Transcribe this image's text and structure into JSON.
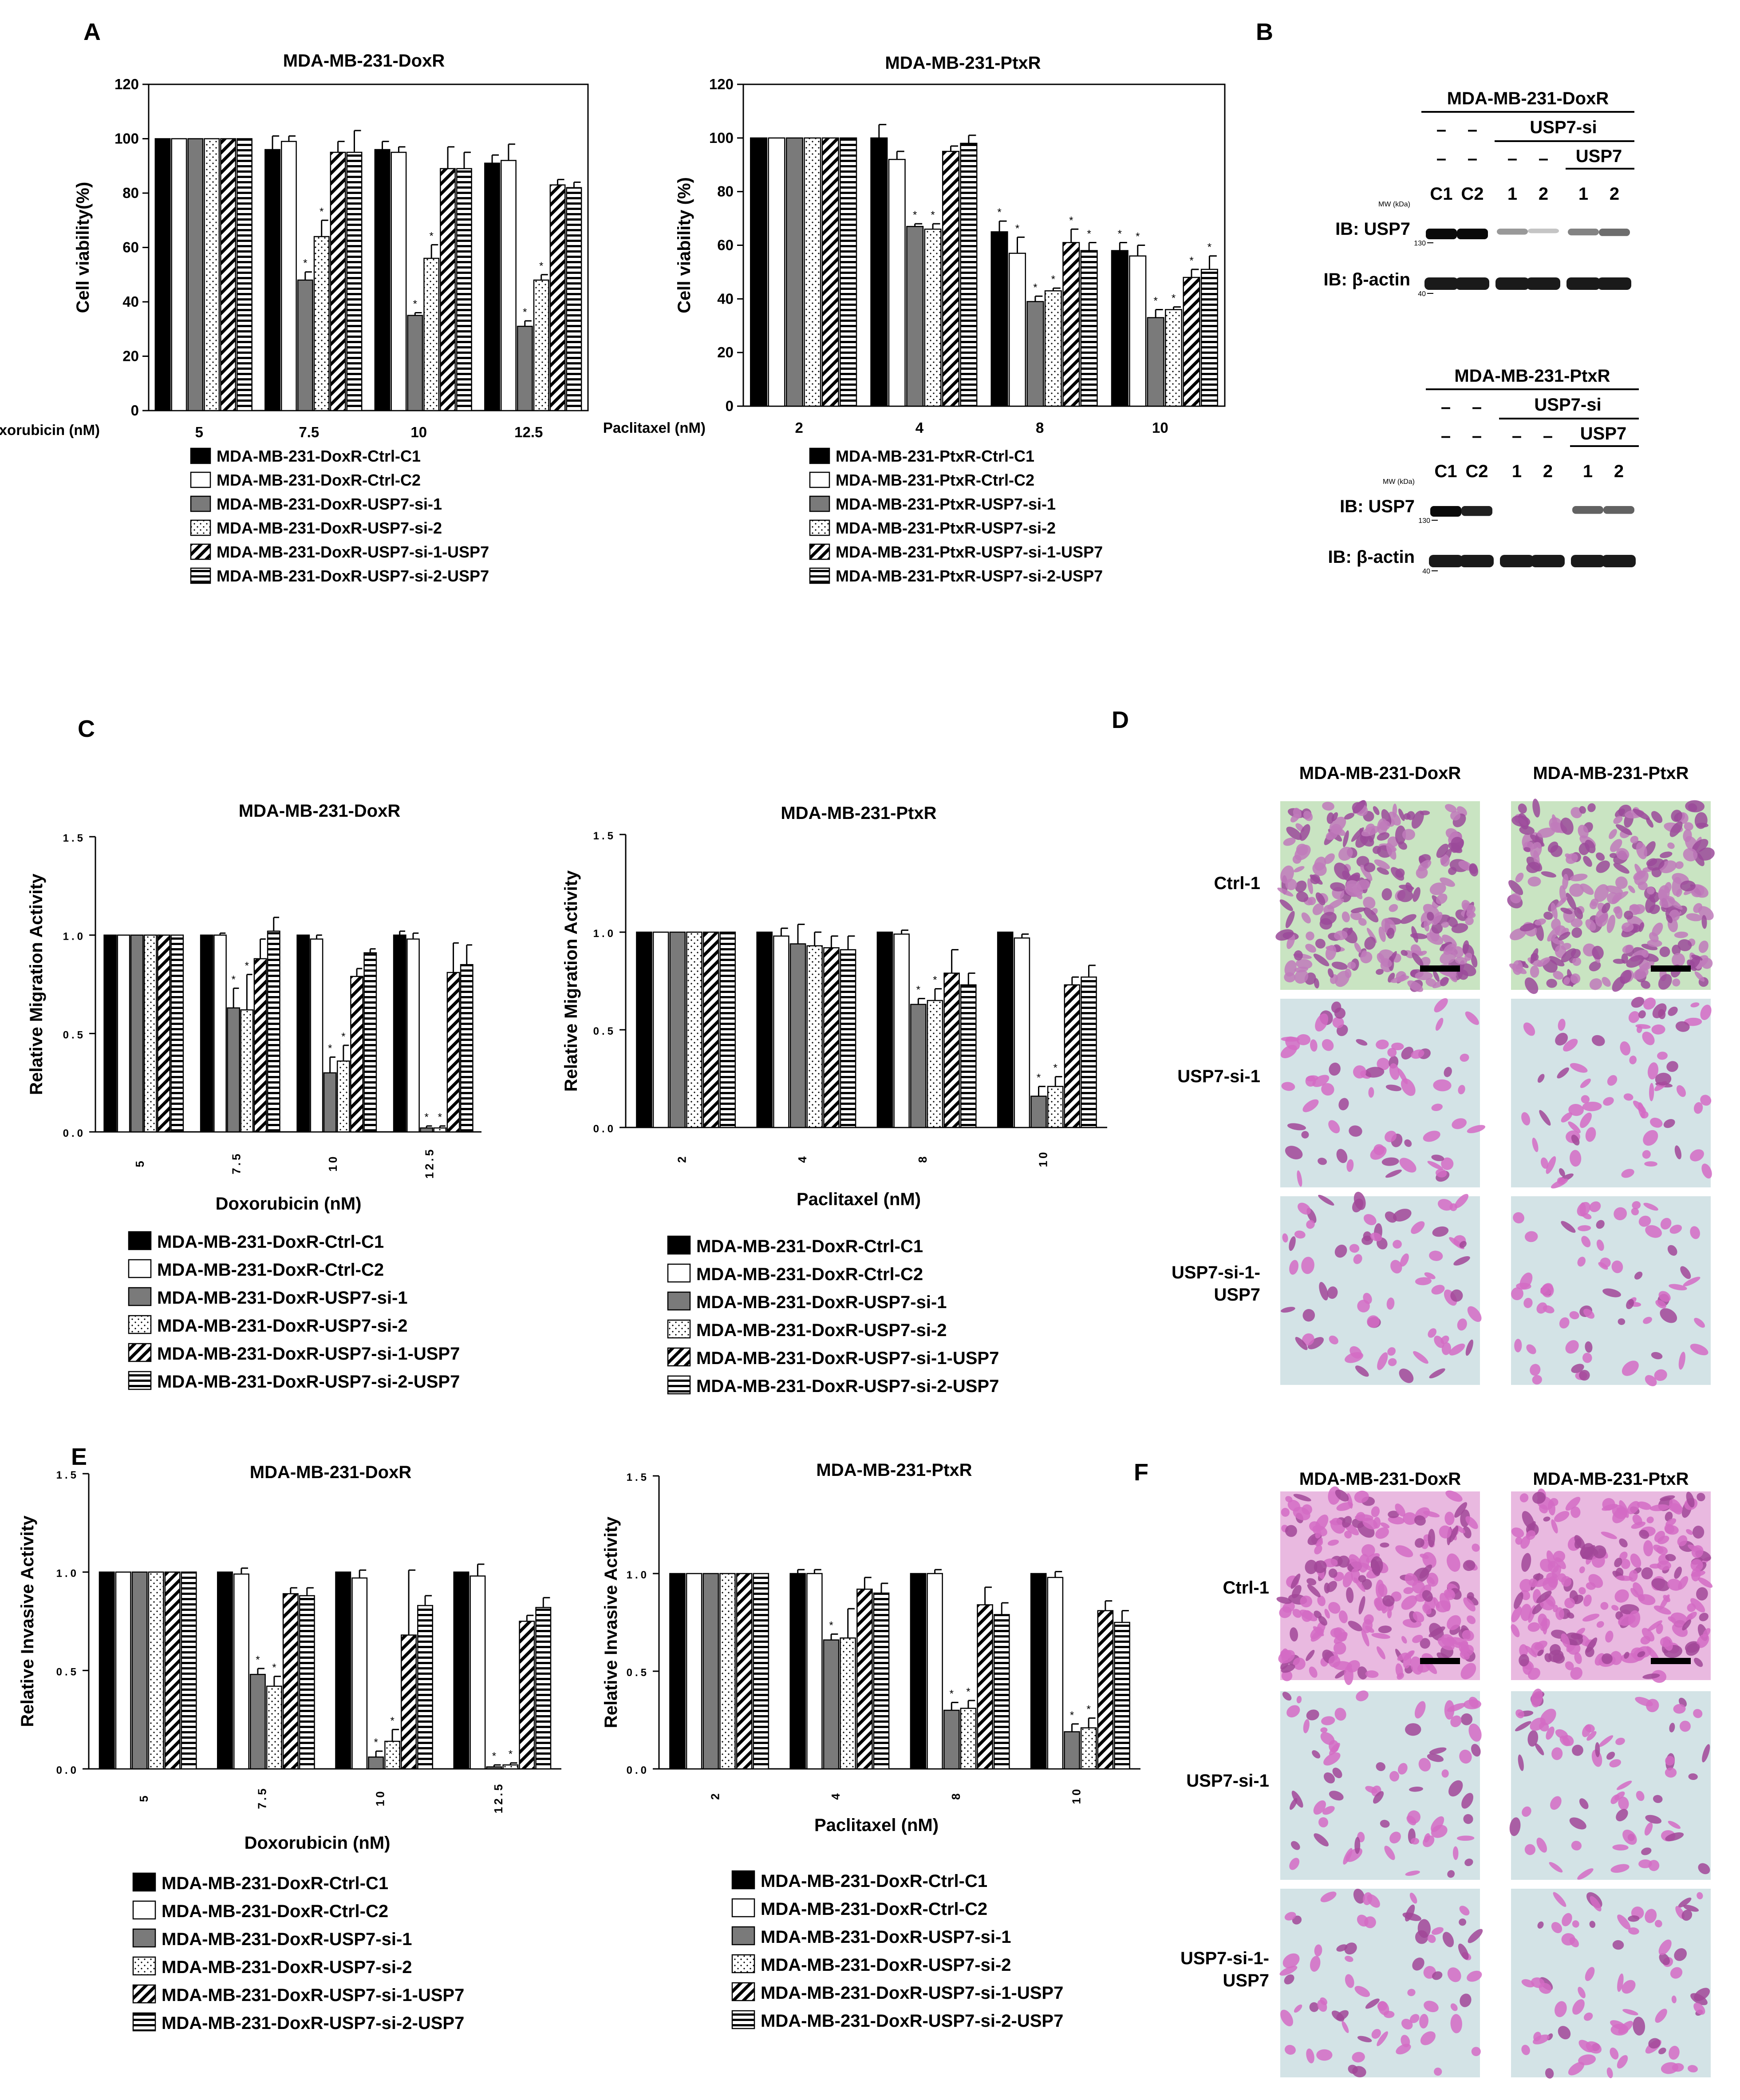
{
  "panels": {
    "A": "A",
    "B": "B",
    "C": "C",
    "D": "D",
    "E": "E",
    "F": "F"
  },
  "series_legends": {
    "doxA": [
      "MDA-MB-231-DoxR-Ctrl-C1",
      "MDA-MB-231-DoxR-Ctrl-C2",
      "MDA-MB-231-DoxR-USP7-si-1",
      "MDA-MB-231-DoxR-USP7-si-2",
      "MDA-MB-231-DoxR-USP7-si-1-USP7",
      "MDA-MB-231-DoxR-USP7-si-2-USP7"
    ],
    "ptxA": [
      "MDA-MB-231-PtxR-Ctrl-C1",
      "MDA-MB-231-PtxR-Ctrl-C2",
      "MDA-MB-231-PtxR-USP7-si-1",
      "MDA-MB-231-PtxR-USP7-si-2",
      "MDA-MB-231-PtxR-USP7-si-1-USP7",
      "MDA-MB-231-PtxR-USP7-si-2-USP7"
    ]
  },
  "colors": {
    "black": "#000000",
    "white": "#ffffff",
    "gray": "#7a7a7a",
    "purple_stain": "#c24fb4",
    "teal_background": "#a7d4d0"
  },
  "chart_data": [
    {
      "id": "A_dox",
      "type": "bar",
      "title": "MDA-MB-231-DoxR",
      "ylabel": "Cell viability(%)",
      "xlabel": "Doxorubicin (nM)",
      "ylim": [
        0,
        120
      ],
      "yticks": [
        "0",
        "20",
        "40",
        "60",
        "80",
        "100",
        "120"
      ],
      "categories": [
        "5",
        "7.5",
        "10",
        "12.5"
      ],
      "series": [
        {
          "name": "MDA-MB-231-DoxR-Ctrl-C1",
          "values": [
            100,
            96,
            96,
            91
          ],
          "err": [
            0,
            5,
            3,
            3
          ]
        },
        {
          "name": "MDA-MB-231-DoxR-Ctrl-C2",
          "values": [
            100,
            99,
            95,
            92
          ],
          "err": [
            0,
            2,
            2,
            6
          ]
        },
        {
          "name": "MDA-MB-231-DoxR-USP7-si-1",
          "values": [
            100,
            48,
            35,
            31
          ],
          "err": [
            0,
            3,
            1,
            2
          ],
          "sig": [
            false,
            true,
            true,
            true
          ]
        },
        {
          "name": "MDA-MB-231-DoxR-USP7-si-2",
          "values": [
            100,
            64,
            56,
            48
          ],
          "err": [
            0,
            6,
            5,
            2
          ],
          "sig": [
            false,
            true,
            true,
            true
          ]
        },
        {
          "name": "MDA-MB-231-DoxR-USP7-si-1-USP7",
          "values": [
            100,
            95,
            89,
            83
          ],
          "err": [
            0,
            4,
            8,
            2
          ]
        },
        {
          "name": "MDA-MB-231-DoxR-USP7-si-2-USP7",
          "values": [
            100,
            95,
            89,
            82
          ],
          "err": [
            0,
            8,
            6,
            2
          ]
        }
      ]
    },
    {
      "id": "A_ptx",
      "type": "bar",
      "title": "MDA-MB-231-PtxR",
      "ylabel": "Cell viability (%)",
      "xlabel": "Paclitaxel (nM)",
      "ylim": [
        0,
        120
      ],
      "yticks": [
        "0",
        "20",
        "40",
        "60",
        "80",
        "100",
        "120"
      ],
      "categories": [
        "2",
        "4",
        "8",
        "10"
      ],
      "series": [
        {
          "name": "MDA-MB-231-PtxR-Ctrl-C1",
          "values": [
            100,
            100,
            65,
            58
          ],
          "err": [
            0,
            5,
            4,
            3
          ],
          "sig": [
            false,
            false,
            true,
            true
          ]
        },
        {
          "name": "MDA-MB-231-PtxR-Ctrl-C2",
          "values": [
            100,
            92,
            57,
            56
          ],
          "err": [
            0,
            3,
            6,
            4
          ],
          "sig": [
            false,
            false,
            true,
            true
          ]
        },
        {
          "name": "MDA-MB-231-PtxR-USP7-si-1",
          "values": [
            100,
            67,
            39,
            33
          ],
          "err": [
            0,
            1,
            2,
            3
          ],
          "sig": [
            false,
            true,
            true,
            true
          ]
        },
        {
          "name": "MDA-MB-231-PtxR-USP7-si-2",
          "values": [
            100,
            66,
            43,
            36
          ],
          "err": [
            0,
            2,
            1,
            1
          ],
          "sig": [
            false,
            true,
            true,
            true
          ]
        },
        {
          "name": "MDA-MB-231-PtxR-USP7-si-1-USP7",
          "values": [
            100,
            95,
            61,
            48
          ],
          "err": [
            0,
            2,
            5,
            3
          ],
          "sig": [
            false,
            false,
            true,
            true
          ]
        },
        {
          "name": "MDA-MB-231-PtxR-USP7-si-2-USP7",
          "values": [
            100,
            98,
            58,
            51
          ],
          "err": [
            0,
            3,
            3,
            5
          ],
          "sig": [
            false,
            false,
            true,
            true
          ]
        }
      ]
    },
    {
      "id": "C_dox",
      "type": "bar",
      "title": "MDA-MB-231-DoxR",
      "ylabel": "Relative Migration Activity",
      "xlabel": "Doxorubicin (nM)",
      "ylim": [
        0,
        1.5
      ],
      "yticks": [
        "0.0",
        "0.5",
        "1.0",
        "1.5"
      ],
      "categories": [
        "5",
        "7.5",
        "10",
        "12.5"
      ],
      "series": [
        {
          "name": "MDA-MB-231-DoxR-Ctrl-C1",
          "values": [
            1.0,
            1.0,
            1.0,
            1.0
          ],
          "err": [
            0,
            0,
            0,
            0.02
          ]
        },
        {
          "name": "MDA-MB-231-DoxR-Ctrl-C2",
          "values": [
            1.0,
            1.0,
            0.98,
            0.98
          ],
          "err": [
            0,
            0.01,
            0.02,
            0.03
          ]
        },
        {
          "name": "MDA-MB-231-DoxR-USP7-si-1",
          "values": [
            1.0,
            0.63,
            0.3,
            0.02
          ],
          "err": [
            0,
            0.1,
            0.08,
            0.01
          ],
          "sig": [
            false,
            true,
            true,
            true
          ]
        },
        {
          "name": "MDA-MB-231-DoxR-USP7-si-2",
          "values": [
            1.0,
            0.62,
            0.36,
            0.02
          ],
          "err": [
            0,
            0.18,
            0.08,
            0.01
          ],
          "sig": [
            false,
            true,
            true,
            true
          ]
        },
        {
          "name": "MDA-MB-231-DoxR-USP7-si-1-USP7",
          "values": [
            1.0,
            0.88,
            0.79,
            0.81
          ],
          "err": [
            0,
            0.1,
            0.04,
            0.15
          ]
        },
        {
          "name": "MDA-MB-231-DoxR-USP7-si-2-USP7",
          "values": [
            1.0,
            1.02,
            0.91,
            0.85
          ],
          "err": [
            0,
            0.07,
            0.02,
            0.1
          ]
        }
      ]
    },
    {
      "id": "C_ptx",
      "type": "bar",
      "title": "MDA-MB-231-PtxR",
      "ylabel": "Relative Migration Activity",
      "xlabel": "Paclitaxel (nM)",
      "ylim": [
        0,
        1.5
      ],
      "yticks": [
        "0.0",
        "0.5",
        "1.0",
        "1.5"
      ],
      "categories": [
        "2",
        "4",
        "8",
        "10"
      ],
      "series": [
        {
          "name": "MDA-MB-231-DoxR-Ctrl-C1",
          "values": [
            1.0,
            1.0,
            1.0,
            1.0
          ],
          "err": [
            0,
            0,
            0,
            0
          ]
        },
        {
          "name": "MDA-MB-231-DoxR-Ctrl-C2",
          "values": [
            1.0,
            0.98,
            0.99,
            0.97
          ],
          "err": [
            0,
            0.04,
            0.02,
            0.02
          ]
        },
        {
          "name": "MDA-MB-231-DoxR-USP7-si-1",
          "values": [
            1.0,
            0.94,
            0.63,
            0.16
          ],
          "err": [
            0,
            0.1,
            0.03,
            0.05
          ],
          "sig": [
            false,
            false,
            true,
            true
          ]
        },
        {
          "name": "MDA-MB-231-DoxR-USP7-si-2",
          "values": [
            1.0,
            0.93,
            0.65,
            0.21
          ],
          "err": [
            0,
            0.07,
            0.06,
            0.05
          ],
          "sig": [
            false,
            false,
            true,
            true
          ]
        },
        {
          "name": "MDA-MB-231-DoxR-USP7-si-1-USP7",
          "values": [
            1.0,
            0.92,
            0.79,
            0.73
          ],
          "err": [
            0,
            0.06,
            0.12,
            0.04
          ]
        },
        {
          "name": "MDA-MB-231-DoxR-USP7-si-2-USP7",
          "values": [
            1.0,
            0.91,
            0.73,
            0.77
          ],
          "err": [
            0,
            0.07,
            0.06,
            0.06
          ]
        }
      ]
    },
    {
      "id": "E_dox",
      "type": "bar",
      "title": "MDA-MB-231-DoxR",
      "ylabel": "Relative Invasive Activity",
      "xlabel": "Doxorubicin (nM)",
      "ylim": [
        0,
        1.5
      ],
      "yticks": [
        "0.0",
        "0.5",
        "1.0",
        "1.5"
      ],
      "categories": [
        "5",
        "7.5",
        "10",
        "12.5"
      ],
      "series": [
        {
          "name": "MDA-MB-231-DoxR-Ctrl-C1",
          "values": [
            1.0,
            1.0,
            1.0,
            1.0
          ],
          "err": [
            0,
            0,
            0,
            0
          ]
        },
        {
          "name": "MDA-MB-231-DoxR-Ctrl-C2",
          "values": [
            1.0,
            0.99,
            0.97,
            0.98
          ],
          "err": [
            0,
            0.03,
            0.04,
            0.06
          ]
        },
        {
          "name": "MDA-MB-231-DoxR-USP7-si-1",
          "values": [
            1.0,
            0.48,
            0.06,
            0.01
          ],
          "err": [
            0,
            0.03,
            0.03,
            0.01
          ],
          "sig": [
            false,
            true,
            true,
            true
          ]
        },
        {
          "name": "MDA-MB-231-DoxR-USP7-si-2",
          "values": [
            1.0,
            0.42,
            0.14,
            0.02
          ],
          "err": [
            0,
            0.05,
            0.06,
            0.01
          ],
          "sig": [
            false,
            true,
            true,
            true
          ]
        },
        {
          "name": "MDA-MB-231-DoxR-USP7-si-1-USP7",
          "values": [
            1.0,
            0.89,
            0.68,
            0.75
          ],
          "err": [
            0,
            0.03,
            0.33,
            0.03
          ]
        },
        {
          "name": "MDA-MB-231-DoxR-USP7-si-2-USP7",
          "values": [
            1.0,
            0.88,
            0.83,
            0.82
          ],
          "err": [
            0,
            0.04,
            0.05,
            0.05
          ]
        }
      ]
    },
    {
      "id": "E_ptx",
      "type": "bar",
      "title": "MDA-MB-231-PtxR",
      "ylabel": "Relative Invasive Activity",
      "xlabel": "Paclitaxel (nM)",
      "ylim": [
        0,
        1.5
      ],
      "yticks": [
        "0.0",
        "0.5",
        "1.0",
        "1.5"
      ],
      "categories": [
        "2",
        "4",
        "8",
        "10"
      ],
      "series": [
        {
          "name": "MDA-MB-231-DoxR-Ctrl-C1",
          "values": [
            1.0,
            1.0,
            1.0,
            1.0
          ],
          "err": [
            0,
            0.02,
            0,
            0
          ]
        },
        {
          "name": "MDA-MB-231-DoxR-Ctrl-C2",
          "values": [
            1.0,
            1.0,
            1.0,
            0.98
          ],
          "err": [
            0,
            0.02,
            0.02,
            0.03
          ]
        },
        {
          "name": "MDA-MB-231-DoxR-USP7-si-1",
          "values": [
            1.0,
            0.66,
            0.3,
            0.19
          ],
          "err": [
            0,
            0.03,
            0.04,
            0.04
          ],
          "sig": [
            false,
            true,
            true,
            true
          ]
        },
        {
          "name": "MDA-MB-231-DoxR-USP7-si-2",
          "values": [
            1.0,
            0.67,
            0.31,
            0.21
          ],
          "err": [
            0,
            0.15,
            0.04,
            0.05
          ],
          "sig": [
            false,
            false,
            true,
            true
          ]
        },
        {
          "name": "MDA-MB-231-DoxR-USP7-si-1-USP7",
          "values": [
            1.0,
            0.92,
            0.84,
            0.81
          ],
          "err": [
            0,
            0.06,
            0.09,
            0.05
          ]
        },
        {
          "name": "MDA-MB-231-DoxR-USP7-si-2-USP7",
          "values": [
            1.0,
            0.9,
            0.79,
            0.75
          ],
          "err": [
            0,
            0.05,
            0.06,
            0.06
          ]
        }
      ]
    }
  ],
  "western_blots": [
    {
      "title": "MDA-MB-231-DoxR",
      "usp7si": "USP7-si",
      "usp7": "USP7",
      "dashes": [
        "–",
        "–",
        "–",
        "–"
      ],
      "lanes": [
        "C1",
        "C2",
        "1",
        "2",
        "1",
        "2"
      ],
      "mw_label": "MW (kDa)",
      "usp7_label": "IB: USP7",
      "actin_label": "IB: β-actin",
      "mw_130": "130",
      "mw_40": "40",
      "usp7_intensity": [
        1.0,
        1.0,
        0.35,
        0.15,
        0.45,
        0.55
      ],
      "actin_intensity": [
        1,
        1,
        1,
        1,
        1,
        1
      ]
    },
    {
      "title": "MDA-MB-231-PtxR",
      "usp7si": "USP7-si",
      "usp7": "USP7",
      "dashes": [
        "–",
        "–",
        "–",
        "–"
      ],
      "lanes": [
        "C1",
        "C2",
        "1",
        "2",
        "1",
        "2"
      ],
      "mw_label": "MW (kDa)",
      "usp7_label": "IB: USP7",
      "actin_label": "IB: β-actin",
      "mw_130": "130",
      "mw_40": "40",
      "usp7_intensity": [
        1.0,
        0.9,
        0.0,
        0.0,
        0.6,
        0.6
      ],
      "actin_intensity": [
        1,
        1,
        1,
        1,
        1,
        1
      ]
    }
  ],
  "micrographs": {
    "D": {
      "columns": [
        "MDA-MB-231-DoxR",
        "MDA-MB-231-PtxR"
      ],
      "rows": [
        "Ctrl-1",
        "USP7-si-1",
        "USP7-si-1-\nUSP7"
      ]
    },
    "F": {
      "columns": [
        "MDA-MB-231-DoxR",
        "MDA-MB-231-PtxR"
      ],
      "rows": [
        "Ctrl-1",
        "USP7-si-1",
        "USP7-si-1-\nUSP7"
      ]
    }
  }
}
